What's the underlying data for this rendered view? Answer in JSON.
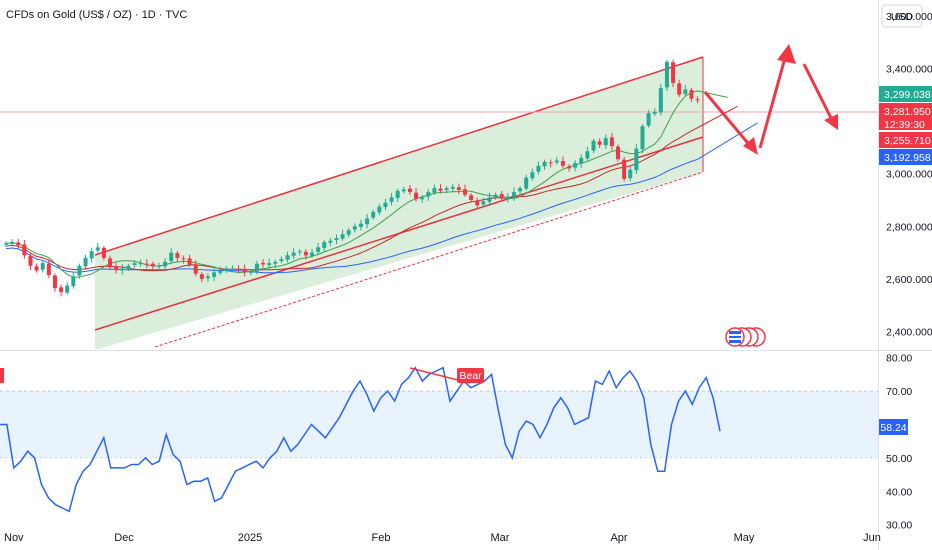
{
  "header": {
    "title": "CFDs on Gold (US$ / OZ) · 1D · TVC",
    "currency": "USD"
  },
  "colors": {
    "up": "#22ab94",
    "down": "#f23645",
    "channel_line": "#e8313c",
    "channel_fill": "#c8e6c9",
    "ma_fast": "#4caf50",
    "ma_mid": "#b71c1c",
    "ma_slow": "#2962ff",
    "rsi_line": "#2962ff",
    "rsi_band": "#e3f2fd",
    "price_tag_green": "#22ab94",
    "price_tag_red": "#f23645",
    "price_tag_blue": "#2962ff"
  },
  "chart_data": [
    {
      "type": "candlestick",
      "name": "price",
      "y_ticks": [
        "3,600.000",
        "3,400.000",
        "3,000.000",
        "2,800.000",
        "2,600.000",
        "2,400.000"
      ],
      "ylim": [
        2330,
        3660
      ],
      "x_ticks": [
        "Nov",
        "Dec",
        "2025",
        "Feb",
        "Mar",
        "Apr",
        "May",
        "Jun"
      ],
      "price_tags": [
        {
          "label": "3,299.038",
          "color": "green"
        },
        {
          "label": "3,281.950",
          "color": "red"
        },
        {
          "label": "12:39:30",
          "color": "red"
        },
        {
          "label": "3,255.710",
          "color": "red"
        },
        {
          "label": "3,192.958",
          "color": "blue"
        }
      ],
      "ohlc_close": [
        2735,
        2740,
        2728,
        2690,
        2650,
        2632,
        2660,
        2615,
        2565,
        2550,
        2575,
        2610,
        2650,
        2680,
        2705,
        2720,
        2680,
        2645,
        2635,
        2640,
        2650,
        2660,
        2660,
        2655,
        2648,
        2650,
        2665,
        2700,
        2680,
        2675,
        2655,
        2620,
        2600,
        2610,
        2625,
        2630,
        2640,
        2640,
        2635,
        2625,
        2630,
        2658,
        2655,
        2660,
        2665,
        2675,
        2690,
        2700,
        2705,
        2690,
        2700,
        2720,
        2740,
        2745,
        2755,
        2770,
        2785,
        2800,
        2810,
        2830,
        2855,
        2875,
        2890,
        2910,
        2935,
        2940,
        2930,
        2905,
        2910,
        2930,
        2945,
        2935,
        2945,
        2950,
        2938,
        2920,
        2900,
        2880,
        2895,
        2910,
        2920,
        2905,
        2912,
        2930,
        2945,
        2985,
        3005,
        3030,
        3045,
        3040,
        3050,
        3030,
        3020,
        3040,
        3060,
        3085,
        3125,
        3110,
        3135,
        3105,
        3055,
        2980,
        3015,
        3095,
        3180,
        3230,
        3235,
        3325,
        3425,
        3345,
        3300,
        3320,
        3285,
        3282
      ]
    },
    {
      "type": "line",
      "name": "RSI",
      "y_ticks": [
        "80.00",
        "70.00",
        "50.00",
        "40.00",
        "30.00"
      ],
      "ylim": [
        29,
        82
      ],
      "band": [
        30,
        70
      ],
      "current_label": "58.24",
      "annotation": "Bear",
      "values": [
        60,
        60,
        47,
        49,
        52,
        50,
        42,
        38,
        36,
        35,
        34,
        42,
        46,
        48,
        52,
        56,
        47,
        47,
        47,
        48,
        48,
        50,
        48,
        49,
        57,
        51,
        49,
        42,
        43,
        43,
        44,
        37,
        38,
        42,
        46,
        47,
        48,
        49,
        47,
        50,
        52,
        56,
        52,
        54,
        57,
        60,
        58,
        56,
        59,
        62,
        66,
        70,
        73,
        69,
        64,
        68,
        70,
        67,
        72,
        74,
        77,
        73,
        75,
        76,
        77,
        67,
        70,
        73,
        71,
        72,
        73,
        75,
        64,
        54,
        50,
        58,
        61,
        60,
        56,
        60,
        65,
        68,
        65,
        60,
        61,
        62,
        73,
        72,
        76,
        71,
        74,
        76,
        73,
        68,
        54,
        46,
        46,
        60,
        67,
        70,
        66,
        71,
        74,
        68,
        58
      ]
    }
  ]
}
